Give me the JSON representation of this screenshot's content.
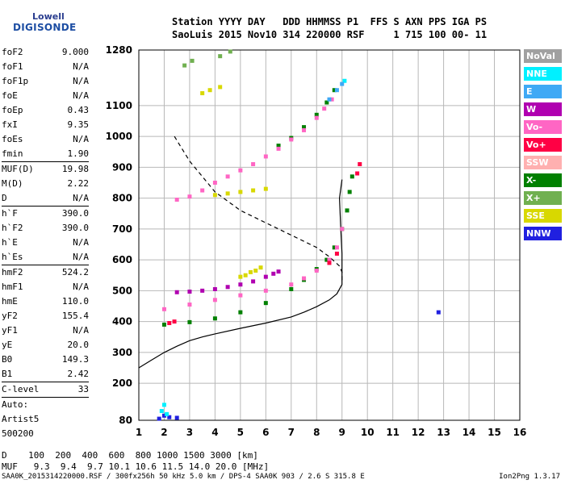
{
  "logo": {
    "line1": "Lowell",
    "line2": "DIGISONDE"
  },
  "header": {
    "line1": "Station YYYY DAY   DDD HHMMSS P1  FFS S AXN PPS IGA PS",
    "line2": "SaoLuis 2015 Nov10 314 220000 RSF     1 715 100 00- 11"
  },
  "params": [
    {
      "label": "foF2",
      "value": "9.000"
    },
    {
      "label": "foF1",
      "value": "N/A"
    },
    {
      "label": "foF1p",
      "value": "N/A"
    },
    {
      "label": "foE",
      "value": "N/A"
    },
    {
      "label": "foEp",
      "value": "0.43"
    },
    {
      "label": "fxI",
      "value": "9.35"
    },
    {
      "label": "foEs",
      "value": "N/A"
    },
    {
      "label": "fmin",
      "value": "1.90"
    },
    {
      "label": "MUF(D)",
      "value": "19.98"
    },
    {
      "label": "M(D)",
      "value": "2.22"
    },
    {
      "label": "D",
      "value": "N/A"
    },
    {
      "label": "h`F",
      "value": "390.0"
    },
    {
      "label": "h`F2",
      "value": "390.0"
    },
    {
      "label": "h`E",
      "value": "N/A"
    },
    {
      "label": "h`Es",
      "value": "N/A"
    },
    {
      "label": "hmF2",
      "value": "524.2"
    },
    {
      "label": "hmF1",
      "value": "N/A"
    },
    {
      "label": "hmE",
      "value": "110.0"
    },
    {
      "label": "yF2",
      "value": "155.4"
    },
    {
      "label": "yF1",
      "value": "N/A"
    },
    {
      "label": "yE",
      "value": "20.0"
    },
    {
      "label": "B0",
      "value": "149.3"
    },
    {
      "label": "B1",
      "value": "2.42"
    },
    {
      "label": "C-level",
      "value": "33"
    },
    {
      "label": "Auto:",
      "value": ""
    },
    {
      "label": "Artist5",
      "value": ""
    },
    {
      "label": "500200",
      "value": ""
    }
  ],
  "legend": [
    {
      "label": "NoVal",
      "color": "#a0a0a0"
    },
    {
      "label": "NNE",
      "color": "#00f0ff"
    },
    {
      "label": "E",
      "color": "#3fa9f5"
    },
    {
      "label": "W",
      "color": "#b000b0"
    },
    {
      "label": "Vo-",
      "color": "#ff66c4"
    },
    {
      "label": "Vo+",
      "color": "#ff0044"
    },
    {
      "label": "SSW",
      "color": "#ffb0b0"
    },
    {
      "label": "X-",
      "color": "#008000"
    },
    {
      "label": "X+",
      "color": "#70b050"
    },
    {
      "label": "SSE",
      "color": "#d8d800"
    },
    {
      "label": "NNW",
      "color": "#2020e0"
    }
  ],
  "bottom": {
    "d_line": "D    100  200  400  600  800 1000 1500 3000 [km]",
    "muf_line": "MUF   9.3  9.4  9.7 10.1 10.6 11.5 14.0 20.0 [MHz]"
  },
  "footer": {
    "left": "SAA0K_2015314220000.RSF / 300fx256h 50 kHz 5.0 km / DPS-4 SAA0K 903 / 2.6 S 315.8 E",
    "right": "Ion2Png 1.3.17"
  },
  "chart_data": {
    "type": "scatter",
    "xlim": [
      1,
      16
    ],
    "ylim": [
      80,
      1280
    ],
    "x_ticks": [
      1,
      2,
      3,
      4,
      5,
      6,
      7,
      8,
      9,
      10,
      11,
      12,
      13,
      14,
      15,
      16
    ],
    "y_ticks": [
      80,
      200,
      300,
      400,
      500,
      600,
      700,
      800,
      900,
      1000,
      1100,
      1280
    ],
    "grid": true,
    "legend_placement": "right",
    "series": [
      {
        "name": "W",
        "color": "#b000b0",
        "x": [
          2.5,
          3.0,
          3.5,
          4.0,
          4.5,
          5.0,
          5.5,
          6.0,
          6.3,
          6.5
        ],
        "y": [
          495,
          497,
          500,
          505,
          512,
          520,
          530,
          545,
          555,
          562
        ]
      },
      {
        "name": "SSE",
        "color": "#d8d800",
        "x": [
          5.0,
          5.2,
          5.4,
          5.6,
          5.8,
          4.0,
          4.5,
          5.0,
          5.5,
          6.0,
          3.5,
          3.8,
          4.2
        ],
        "y": [
          545,
          550,
          560,
          565,
          575,
          810,
          815,
          820,
          825,
          830,
          1140,
          1150,
          1160
        ]
      },
      {
        "name": "X-",
        "color": "#008000",
        "x": [
          2.0,
          3.0,
          4.0,
          5.0,
          6.0,
          7.0,
          7.5,
          8.0,
          8.4,
          8.7,
          9.0,
          9.2,
          9.3,
          9.4,
          6.5,
          7.0,
          7.5,
          8.0,
          8.4,
          8.7
        ],
        "y": [
          390,
          398,
          410,
          430,
          460,
          505,
          535,
          570,
          600,
          640,
          700,
          760,
          820,
          870,
          970,
          995,
          1030,
          1070,
          1110,
          1150
        ]
      },
      {
        "name": "Vo-",
        "color": "#ff66c4",
        "x": [
          2.0,
          3.0,
          4.0,
          5.0,
          6.0,
          7.0,
          7.5,
          8.0,
          8.5,
          8.8,
          9.0,
          2.5,
          3.0,
          3.5,
          4.0,
          4.5,
          5.0,
          5.5,
          6.0,
          6.5,
          7.0,
          7.5,
          8.0,
          8.3,
          8.6
        ],
        "y": [
          440,
          455,
          470,
          485,
          500,
          520,
          540,
          565,
          600,
          640,
          700,
          795,
          805,
          825,
          850,
          870,
          890,
          910,
          935,
          960,
          990,
          1020,
          1060,
          1090,
          1120
        ]
      },
      {
        "name": "Vo+",
        "color": "#ff0044",
        "x": [
          2.2,
          2.4,
          8.5,
          8.8,
          9.6,
          9.7
        ],
        "y": [
          395,
          400,
          590,
          620,
          880,
          910
        ]
      },
      {
        "name": "NNW",
        "color": "#2020e0",
        "x": [
          1.8,
          2.0,
          2.2,
          2.5,
          12.8
        ],
        "y": [
          85,
          95,
          90,
          88,
          430
        ]
      },
      {
        "name": "NNE",
        "color": "#00f0ff",
        "x": [
          1.9,
          2.0,
          2.1,
          9.1
        ],
        "y": [
          110,
          130,
          100,
          1180
        ]
      },
      {
        "name": "E",
        "color": "#3fa9f5",
        "x": [
          8.5,
          8.8,
          9.0
        ],
        "y": [
          1120,
          1150,
          1170
        ]
      },
      {
        "name": "X+",
        "color": "#70b050",
        "x": [
          2.8,
          3.1,
          4.2,
          4.6
        ],
        "y": [
          1230,
          1245,
          1260,
          1275
        ]
      }
    ],
    "profile_solid": {
      "x": [
        1.0,
        1.5,
        2.0,
        2.5,
        3.0,
        3.5,
        4.0,
        5.0,
        6.0,
        7.0,
        7.5,
        8.0,
        8.5,
        8.8,
        9.0,
        9.0,
        8.95,
        8.9,
        9.0
      ],
      "y": [
        250,
        275,
        300,
        320,
        338,
        350,
        360,
        378,
        395,
        415,
        430,
        448,
        470,
        490,
        520,
        620,
        700,
        800,
        860
      ]
    },
    "profile_dashed": {
      "x": [
        2.4,
        3.0,
        4.0,
        5.0,
        6.0,
        7.0,
        8.0,
        8.5,
        8.9,
        9.0,
        9.0
      ],
      "y": [
        1000,
        920,
        820,
        760,
        720,
        680,
        640,
        610,
        580,
        560,
        530
      ]
    }
  }
}
